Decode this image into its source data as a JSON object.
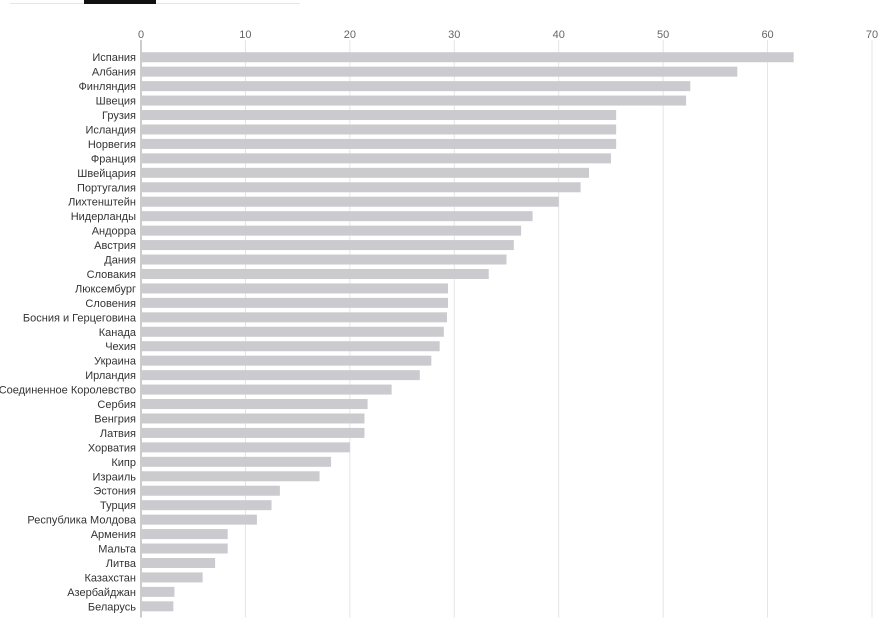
{
  "tabs": {
    "active_color": "#111111"
  },
  "colors": {
    "bar": "#cbcbcf",
    "grid": "#e5e5e5",
    "axis": "#999999"
  },
  "chart_data": {
    "type": "bar",
    "orientation": "horizontal",
    "title": "",
    "xlabel": "",
    "ylabel": "",
    "xlim": [
      0,
      70
    ],
    "xticks": [
      "0",
      "10",
      "20",
      "30",
      "40",
      "50",
      "60",
      "70"
    ],
    "grid": true,
    "categories": [
      "Испания",
      "Албания",
      "Финляндия",
      "Швеция",
      "Грузия",
      "Исландия",
      "Норвегия",
      "Франция",
      "Швейцария",
      "Португалия",
      "Лихтенштейн",
      "Нидерланды",
      "Андорра",
      "Австрия",
      "Дания",
      "Словакия",
      "Люксембург",
      "Словения",
      "Босния и Герцеговина",
      "Канада",
      "Чехия",
      "Украина",
      "Ирландия",
      "Соединенное Королевство",
      "Сербия",
      "Венгрия",
      "Латвия",
      "Хорватия",
      "Кипр",
      "Израиль",
      "Эстония",
      "Турция",
      "Республика Молдова",
      "Армения",
      "Мальта",
      "Литва",
      "Казахстан",
      "Азербайджан",
      "Беларусь"
    ],
    "values": [
      62.5,
      57.1,
      52.6,
      52.2,
      45.5,
      45.5,
      45.5,
      45.0,
      42.9,
      42.1,
      40.0,
      37.5,
      36.4,
      35.7,
      35.0,
      33.3,
      29.4,
      29.4,
      29.3,
      29.0,
      28.6,
      27.8,
      26.7,
      24.0,
      21.7,
      21.4,
      21.4,
      20.0,
      18.2,
      17.1,
      13.3,
      12.5,
      11.1,
      8.3,
      8.3,
      7.1,
      5.9,
      3.2,
      3.1
    ]
  }
}
